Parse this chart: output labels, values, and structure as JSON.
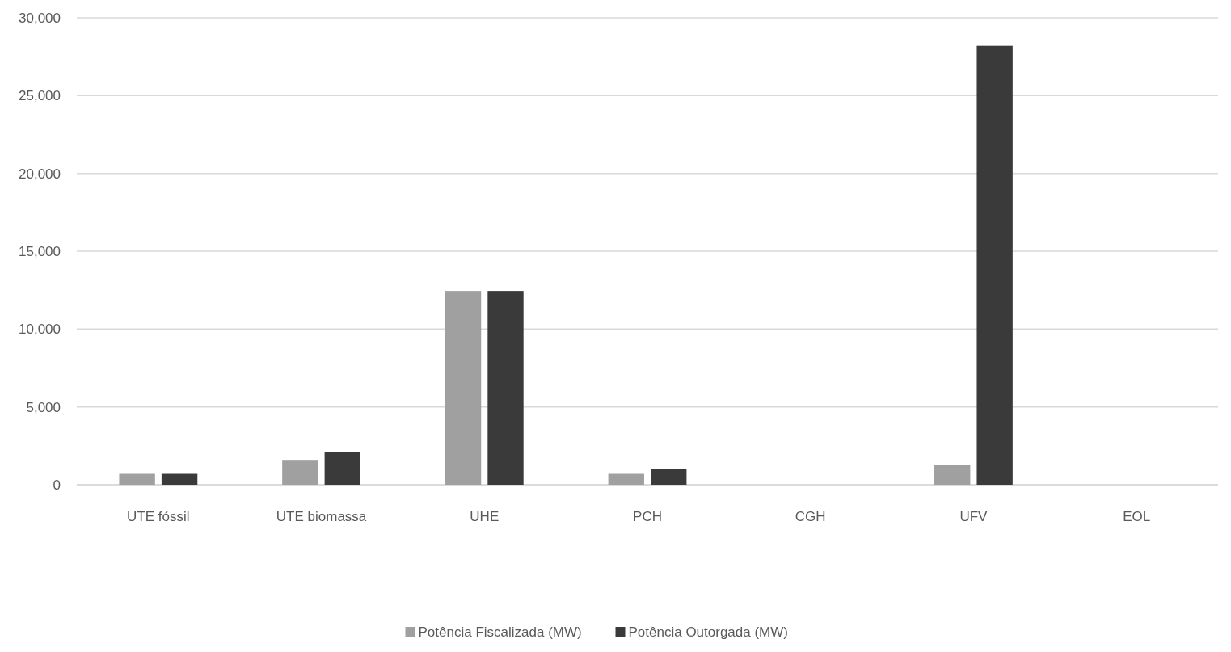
{
  "chart_data": {
    "type": "bar",
    "categories": [
      "UTE fóssil",
      "UTE biomassa",
      "UHE",
      "PCH",
      "CGH",
      "UFV",
      "EOL"
    ],
    "series": [
      {
        "name": "Potência Fiscalizada (MW)",
        "color": "#a0a0a0",
        "values": [
          700,
          1600,
          12450,
          700,
          0,
          1250,
          0
        ]
      },
      {
        "name": "Potência Outorgada (MW)",
        "color": "#3a3a3a",
        "values": [
          700,
          2100,
          12450,
          1000,
          0,
          28200,
          0
        ]
      }
    ],
    "ylim": [
      0,
      30000
    ],
    "yticks": [
      {
        "value": 0,
        "label": "0"
      },
      {
        "value": 5000,
        "label": "5,000"
      },
      {
        "value": 10000,
        "label": "10,000"
      },
      {
        "value": 15000,
        "label": "15,000"
      },
      {
        "value": 20000,
        "label": "20,000"
      },
      {
        "value": 25000,
        "label": "25,000"
      },
      {
        "value": 30000,
        "label": "30,000"
      }
    ],
    "grid": "y",
    "legend": "bottom"
  }
}
